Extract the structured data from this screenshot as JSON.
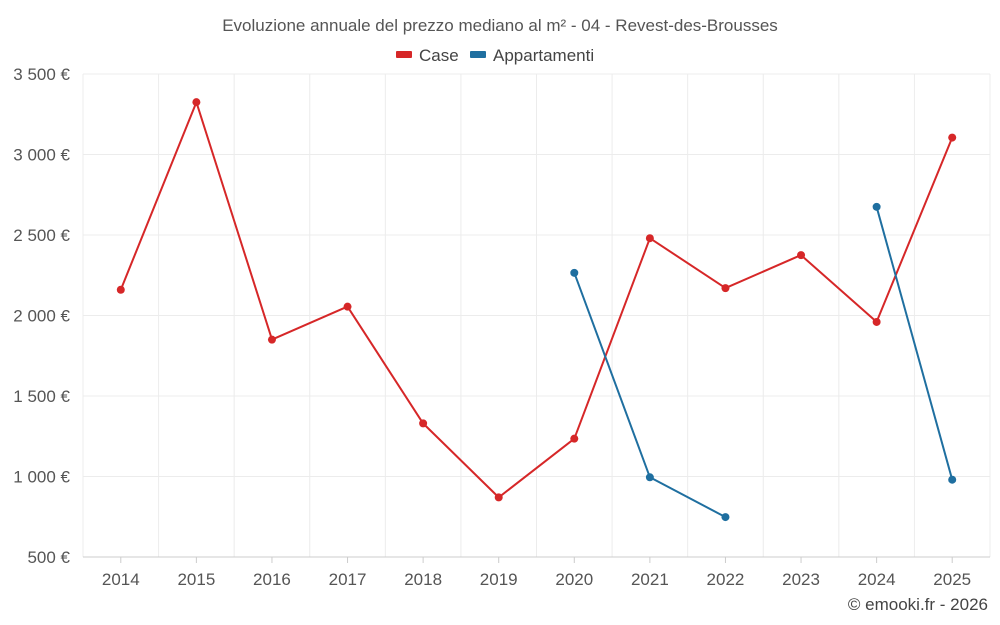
{
  "chart_data": {
    "type": "line",
    "title": "Evoluzione annuale del prezzo mediano al m² - 04 - Revest-des-Brousses",
    "x": [
      "2014",
      "2015",
      "2016",
      "2017",
      "2018",
      "2019",
      "2020",
      "2021",
      "2022",
      "2023",
      "2024",
      "2025"
    ],
    "series": [
      {
        "name": "Case",
        "color": "#d62728",
        "values": [
          2160,
          3325,
          1850,
          2055,
          1330,
          870,
          1235,
          2480,
          2170,
          2375,
          1960,
          3105
        ]
      },
      {
        "name": "Appartamenti",
        "color": "#1f6fa0",
        "values": [
          null,
          null,
          null,
          null,
          null,
          null,
          2265,
          995,
          748,
          null,
          2675,
          980
        ]
      }
    ],
    "ylim": [
      500,
      3500
    ],
    "yticks": [
      500,
      1000,
      1500,
      2000,
      2500,
      3000,
      3500
    ],
    "ytick_labels": [
      "500 €",
      "1 000 €",
      "1 500 €",
      "2 000 €",
      "2 500 €",
      "3 000 €",
      "3 500 €"
    ],
    "grid": true,
    "legend_position": "top-center",
    "credit": "© emooki.fr - 2026"
  }
}
